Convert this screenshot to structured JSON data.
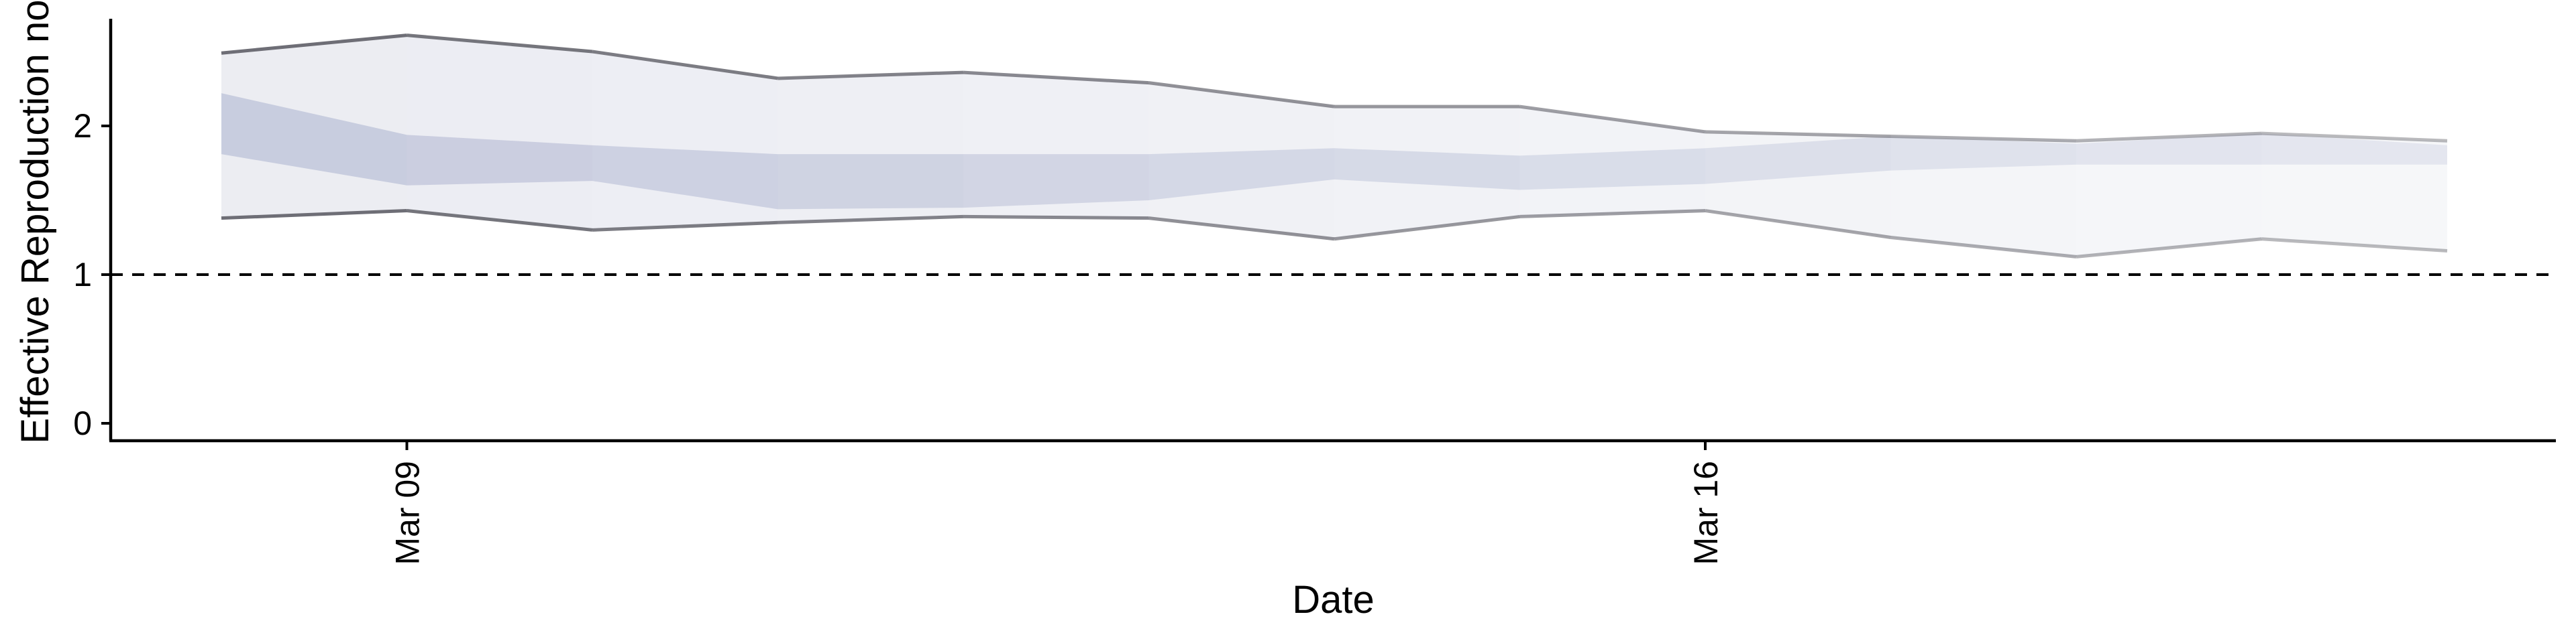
{
  "chart_data": {
    "type": "area",
    "title": "",
    "xlabel": "Date",
    "ylabel": "Effective Reproduction no.",
    "x_ticks": [
      "Mar 09",
      "Mar 16"
    ],
    "y_ticks": [
      0,
      1,
      2
    ],
    "ylim": [
      -0.12,
      2.75
    ],
    "threshold": 1,
    "grid": false,
    "dates": [
      "Mar 08",
      "Mar 09",
      "Mar 10",
      "Mar 11",
      "Mar 12",
      "Mar 13",
      "Mar 14",
      "Mar 15",
      "Mar 16",
      "Mar 17",
      "Mar 18",
      "Mar 19",
      "Mar 20"
    ],
    "series": [
      {
        "upper_90": [
          2.49,
          2.61,
          2.5,
          2.32,
          2.36,
          2.29,
          2.13,
          2.13,
          1.96,
          1.93,
          1.9,
          1.95,
          1.9
        ],
        "upper_50": [
          2.22,
          1.94,
          1.87,
          1.81,
          1.81,
          1.81,
          1.85,
          1.8,
          1.85,
          1.93,
          1.88,
          1.95,
          1.87
        ],
        "lower_50": [
          1.81,
          1.6,
          1.63,
          1.44,
          1.45,
          1.5,
          1.64,
          1.57,
          1.61,
          1.7,
          1.74,
          1.74,
          1.74
        ],
        "lower_90": [
          1.38,
          1.43,
          1.3,
          1.35,
          1.39,
          1.38,
          1.24,
          1.39,
          1.43,
          1.25,
          1.12,
          1.24,
          1.16
        ]
      }
    ],
    "colors": {
      "band_90": "#b9bdd2",
      "band_50": "#8f99bf",
      "ci_line": "#6e6e76"
    }
  }
}
